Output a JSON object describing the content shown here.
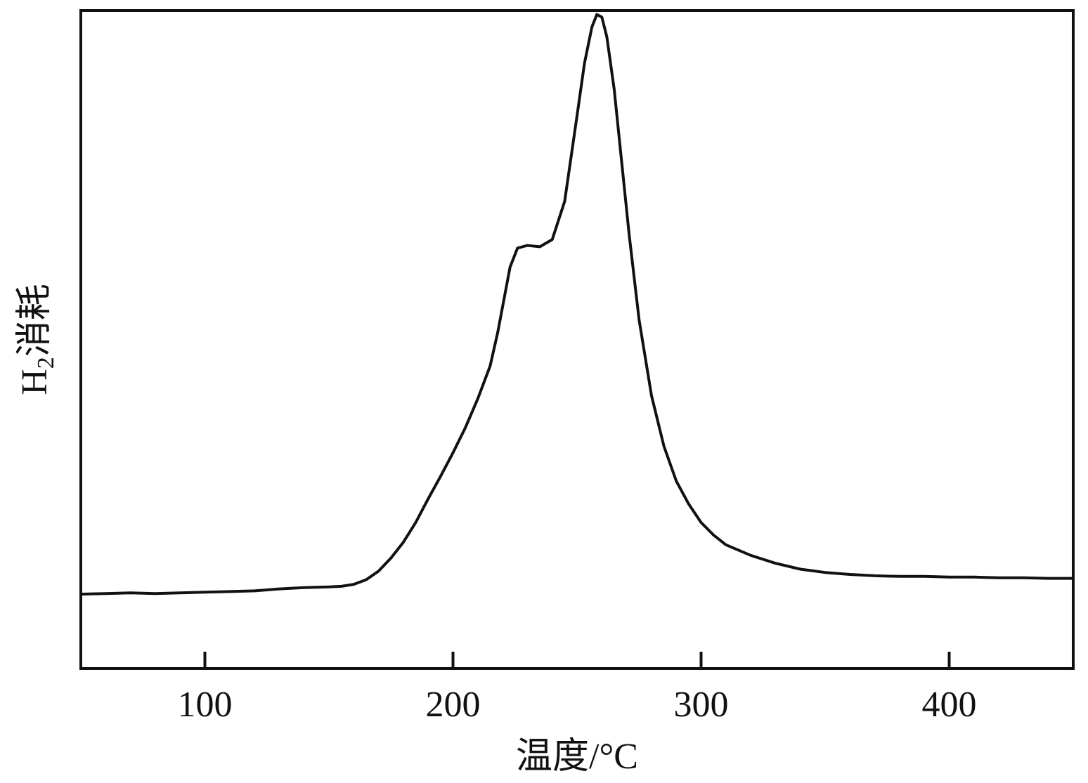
{
  "chart_data": {
    "type": "line",
    "title": "",
    "xlabel": "温度/°C",
    "ylabel_main": "H",
    "ylabel_sub": "2",
    "ylabel_rest": "消耗",
    "xlim": [
      50,
      450
    ],
    "ylim": [
      0,
      1
    ],
    "xticks": [
      100,
      200,
      300,
      400
    ],
    "xtick_labels": [
      "100",
      "200",
      "300",
      "400"
    ],
    "yticks": [],
    "grid": false,
    "legend": "none",
    "line_color": "#111111",
    "series": [
      {
        "x": [
          50,
          60,
          70,
          80,
          90,
          100,
          110,
          120,
          130,
          140,
          150,
          155,
          160,
          165,
          170,
          175,
          180,
          185,
          190,
          195,
          200,
          205,
          210,
          215,
          218,
          220,
          223,
          226,
          230,
          235,
          240,
          245,
          250,
          253,
          256,
          258,
          260,
          262,
          265,
          268,
          271,
          275,
          280,
          285,
          290,
          295,
          300,
          305,
          310,
          320,
          330,
          340,
          350,
          360,
          370,
          380,
          390,
          400,
          410,
          420,
          430,
          440,
          450
        ],
        "y": [
          0.113,
          0.114,
          0.115,
          0.114,
          0.115,
          0.116,
          0.117,
          0.118,
          0.121,
          0.123,
          0.124,
          0.125,
          0.128,
          0.135,
          0.148,
          0.168,
          0.192,
          0.222,
          0.258,
          0.292,
          0.328,
          0.366,
          0.41,
          0.46,
          0.51,
          0.55,
          0.61,
          0.639,
          0.643,
          0.641,
          0.652,
          0.71,
          0.84,
          0.92,
          0.975,
          0.994,
          0.99,
          0.96,
          0.88,
          0.77,
          0.66,
          0.53,
          0.415,
          0.338,
          0.285,
          0.25,
          0.222,
          0.203,
          0.188,
          0.172,
          0.16,
          0.151,
          0.146,
          0.143,
          0.141,
          0.14,
          0.14,
          0.139,
          0.139,
          0.138,
          0.138,
          0.137,
          0.137
        ]
      }
    ]
  }
}
